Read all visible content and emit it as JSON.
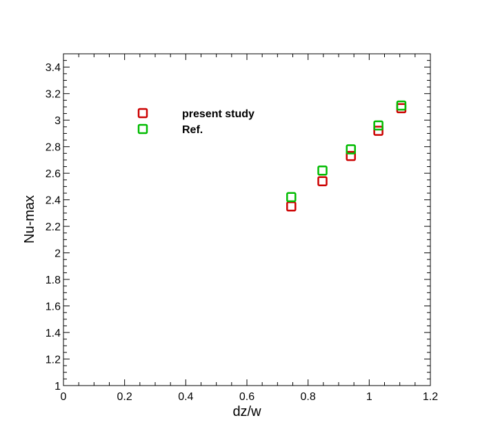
{
  "chart_data": {
    "type": "scatter",
    "xlabel": "dz/w",
    "ylabel": "Nu-max",
    "xlim": [
      0,
      1.2
    ],
    "ylim": [
      1,
      3.5
    ],
    "x_ticks": [
      0,
      0.2,
      0.4,
      0.6,
      0.8,
      1,
      1.2
    ],
    "x_tick_labels": [
      "0",
      "0.2",
      "0.4",
      "0.6",
      "0.8",
      "1",
      "1.2"
    ],
    "y_ticks": [
      1,
      1.2,
      1.4,
      1.6,
      1.8,
      2,
      2.2,
      2.4,
      2.6,
      2.8,
      3,
      3.2,
      3.4
    ],
    "y_tick_labels": [
      "1",
      "1.2",
      "1.4",
      "1.6",
      "1.8",
      "2",
      "2.2",
      "2.4",
      "2.6",
      "2.8",
      "3",
      "3.2",
      "3.4"
    ],
    "grid": false,
    "legend_position": "top-left",
    "series": [
      {
        "name": "present study",
        "color": "#cc0000",
        "marker": "hollow-square",
        "x": [
          0.745,
          0.847,
          0.94,
          1.03,
          1.105
        ],
        "y": [
          2.35,
          2.54,
          2.73,
          2.92,
          3.09
        ]
      },
      {
        "name": "Ref.",
        "color": "#00bb00",
        "marker": "hollow-square",
        "x": [
          0.745,
          0.847,
          0.94,
          1.03,
          1.105
        ],
        "y": [
          2.42,
          2.62,
          2.78,
          2.96,
          3.11
        ]
      }
    ]
  }
}
